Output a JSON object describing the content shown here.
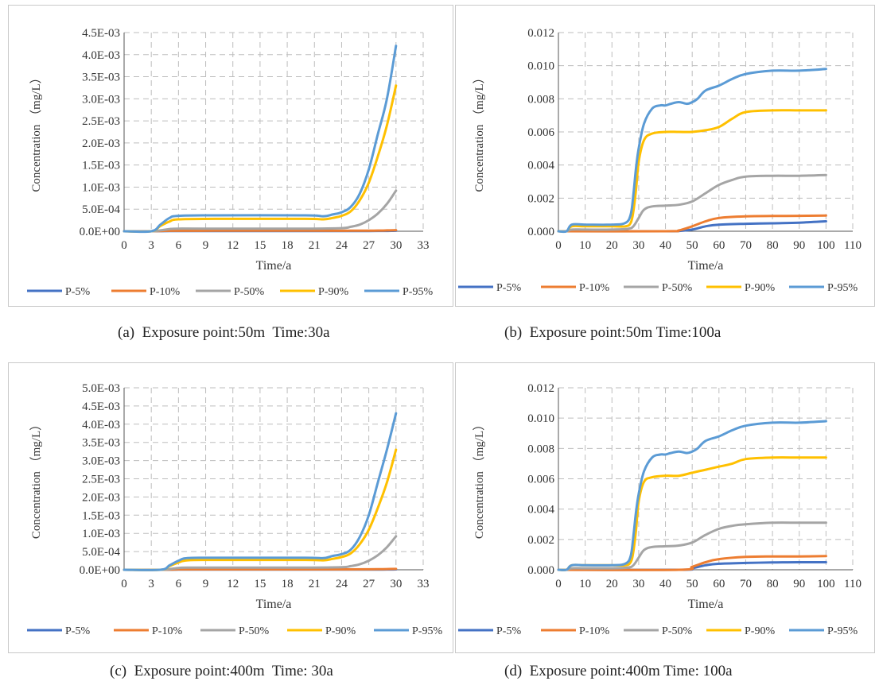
{
  "legend_names": [
    "P-5%",
    "P-10%",
    "P-50%",
    "P-90%",
    "P-95%"
  ],
  "series_colors": [
    "#4472c4",
    "#ed7d31",
    "#a5a5a5",
    "#ffc000",
    "#5b9bd5"
  ],
  "captions": [
    "(a)  Exposure point:50m  Time:30a",
    "(b)  Exposure point:50m Time:100a",
    "(c)  Exposure point:400m  Time: 30a",
    "(d)  Exposure point:400m Time: 100a"
  ],
  "chart_data": [
    {
      "type": "line",
      "xlabel": "Time/a",
      "ylabel": "Concentration （mg/L）",
      "xlim": [
        0,
        33
      ],
      "ylim": [
        0,
        0.0045
      ],
      "x_ticks": [
        "0",
        "3",
        "6",
        "9",
        "12",
        "15",
        "18",
        "21",
        "24",
        "27",
        "30",
        "33"
      ],
      "y_ticks": [
        "0.0E+00",
        "5.0E-04",
        "1.0E-03",
        "1.5E-03",
        "2.0E-03",
        "2.5E-03",
        "3.0E-03",
        "3.5E-03",
        "4.0E-03",
        "4.5E-03"
      ],
      "grid": true,
      "legend": "bottom",
      "series": [
        {
          "name": "P-5%",
          "x": [
            0,
            3,
            4,
            5,
            10,
            20,
            25,
            27,
            28,
            29,
            30
          ],
          "y": [
            0,
            0,
            2e-06,
            4e-06,
            5e-06,
            5e-06,
            5e-06,
            6e-06,
            7e-06,
            8e-06,
            1e-05
          ]
        },
        {
          "name": "P-10%",
          "x": [
            0,
            3,
            4,
            5,
            10,
            20,
            25,
            27,
            28,
            29,
            30
          ],
          "y": [
            0,
            0,
            5e-06,
            1e-05,
            1.2e-05,
            1.2e-05,
            1.2e-05,
            1.4e-05,
            1.6e-05,
            2e-05,
            2.5e-05
          ]
        },
        {
          "name": "P-50%",
          "x": [
            0,
            3,
            4,
            5,
            6,
            10,
            20,
            24,
            25,
            26,
            27,
            28,
            29,
            30
          ],
          "y": [
            0,
            0,
            2e-05,
            5e-05,
            6e-05,
            6e-05,
            6e-05,
            7e-05,
            0.0001,
            0.00015,
            0.00025,
            0.0004,
            0.00062,
            0.00092
          ]
        },
        {
          "name": "P-90%",
          "x": [
            0,
            3,
            4,
            5,
            6,
            10,
            20,
            22,
            23,
            24,
            25,
            26,
            27,
            28,
            29,
            30
          ],
          "y": [
            0,
            0,
            0.00012,
            0.00022,
            0.00027,
            0.00028,
            0.00028,
            0.00027,
            0.0003,
            0.00035,
            0.00045,
            0.0007,
            0.0011,
            0.0017,
            0.0024,
            0.0033
          ]
        },
        {
          "name": "P-95%",
          "x": [
            0,
            3,
            4,
            5,
            6,
            10,
            20,
            22,
            23,
            24,
            25,
            26,
            27,
            28,
            29,
            30
          ],
          "y": [
            0,
            0,
            0.00015,
            0.0003,
            0.00035,
            0.00036,
            0.00036,
            0.00034,
            0.00038,
            0.00043,
            0.00055,
            0.00085,
            0.0014,
            0.0022,
            0.003,
            0.0042
          ]
        }
      ]
    },
    {
      "type": "line",
      "xlabel": "Time/a",
      "ylabel": "Concentration （mg/L）",
      "xlim": [
        0,
        110
      ],
      "ylim": [
        0,
        0.012
      ],
      "x_ticks": [
        "0",
        "10",
        "20",
        "30",
        "40",
        "50",
        "60",
        "70",
        "80",
        "90",
        "100",
        "110"
      ],
      "y_ticks": [
        "0.000",
        "0.002",
        "0.004",
        "0.006",
        "0.008",
        "0.010",
        "0.012"
      ],
      "grid": true,
      "legend": "bottom",
      "series": [
        {
          "name": "P-5%",
          "x": [
            0,
            40,
            45,
            50,
            55,
            60,
            70,
            80,
            90,
            100
          ],
          "y": [
            0,
            0,
            2e-05,
            0.0001,
            0.0003,
            0.0004,
            0.00045,
            0.00048,
            0.00052,
            0.0006
          ]
        },
        {
          "name": "P-10%",
          "x": [
            0,
            40,
            45,
            50,
            55,
            60,
            70,
            80,
            90,
            100
          ],
          "y": [
            0,
            0,
            5e-05,
            0.0003,
            0.0006,
            0.0008,
            0.0009,
            0.00092,
            0.00093,
            0.00095
          ]
        },
        {
          "name": "P-50%",
          "x": [
            0,
            3,
            5,
            10,
            20,
            26,
            28,
            30,
            32,
            35,
            40,
            45,
            50,
            55,
            60,
            65,
            70,
            80,
            90,
            100
          ],
          "y": [
            0,
            0,
            0.0001,
            0.0001,
            0.0001,
            0.00015,
            0.0003,
            0.0008,
            0.0013,
            0.0015,
            0.00155,
            0.0016,
            0.0018,
            0.0023,
            0.0028,
            0.0031,
            0.0033,
            0.00335,
            0.00335,
            0.0034
          ]
        },
        {
          "name": "P-90%",
          "x": [
            0,
            3,
            5,
            10,
            20,
            25,
            27,
            28,
            29,
            30,
            32,
            35,
            40,
            45,
            50,
            55,
            60,
            65,
            70,
            80,
            90,
            100
          ],
          "y": [
            0,
            0,
            0.0003,
            0.0003,
            0.0003,
            0.0003,
            0.0005,
            0.0012,
            0.0025,
            0.0042,
            0.0055,
            0.0059,
            0.006,
            0.006,
            0.006,
            0.0061,
            0.0063,
            0.0068,
            0.0072,
            0.0073,
            0.0073,
            0.0073
          ]
        },
        {
          "name": "P-95%",
          "x": [
            0,
            3,
            5,
            10,
            20,
            25,
            27,
            28,
            29,
            30,
            32,
            35,
            38,
            40,
            42,
            45,
            48,
            50,
            52,
            55,
            60,
            65,
            70,
            80,
            90,
            100
          ],
          "y": [
            0,
            0,
            0.0004,
            0.0004,
            0.0004,
            0.0005,
            0.001,
            0.0022,
            0.0038,
            0.005,
            0.0065,
            0.0074,
            0.0076,
            0.0076,
            0.0077,
            0.0078,
            0.0077,
            0.0078,
            0.008,
            0.0085,
            0.0088,
            0.0092,
            0.0095,
            0.0097,
            0.0097,
            0.0098
          ]
        }
      ]
    },
    {
      "type": "line",
      "xlabel": "Time/a",
      "ylabel": "Concentration （mg/L）",
      "xlim": [
        0,
        33
      ],
      "ylim": [
        0,
        0.005
      ],
      "x_ticks": [
        "0",
        "3",
        "6",
        "9",
        "12",
        "15",
        "18",
        "21",
        "24",
        "27",
        "30",
        "33"
      ],
      "y_ticks": [
        "0.0E+00",
        "5.0E-04",
        "1.0E-03",
        "1.5E-03",
        "2.0E-03",
        "2.5E-03",
        "3.0E-03",
        "3.5E-03",
        "4.0E-03",
        "4.5E-03",
        "5.0E-03"
      ],
      "grid": true,
      "legend": "bottom",
      "series": [
        {
          "name": "P-5%",
          "x": [
            0,
            4,
            5,
            6,
            10,
            20,
            25,
            27,
            28,
            29,
            30
          ],
          "y": [
            0,
            0,
            2e-06,
            4e-06,
            5e-06,
            5e-06,
            5e-06,
            6e-06,
            7e-06,
            8e-06,
            1e-05
          ]
        },
        {
          "name": "P-10%",
          "x": [
            0,
            4,
            5,
            6,
            10,
            20,
            25,
            27,
            28,
            29,
            30
          ],
          "y": [
            0,
            0,
            5e-06,
            1e-05,
            1.2e-05,
            1.2e-05,
            1.2e-05,
            1.4e-05,
            1.6e-05,
            2e-05,
            2.5e-05
          ]
        },
        {
          "name": "P-50%",
          "x": [
            0,
            4,
            5,
            6,
            7,
            10,
            20,
            24,
            25,
            26,
            27,
            28,
            29,
            30
          ],
          "y": [
            0,
            0,
            2e-05,
            5e-05,
            6e-05,
            6e-05,
            6e-05,
            7e-05,
            0.0001,
            0.00015,
            0.00025,
            0.0004,
            0.00062,
            0.00092
          ]
        },
        {
          "name": "P-90%",
          "x": [
            0,
            4,
            5,
            6,
            7,
            10,
            20,
            22,
            23,
            24,
            25,
            26,
            27,
            28,
            29,
            30
          ],
          "y": [
            0,
            0,
            0.0001,
            0.0002,
            0.00026,
            0.00027,
            0.00027,
            0.00026,
            0.0003,
            0.00035,
            0.00045,
            0.0007,
            0.0011,
            0.0017,
            0.0024,
            0.0033
          ]
        },
        {
          "name": "P-95%",
          "x": [
            0,
            4,
            5,
            6,
            7,
            10,
            20,
            22,
            23,
            24,
            25,
            26,
            27,
            28,
            29,
            30
          ],
          "y": [
            0,
            0,
            0.00012,
            0.00025,
            0.00032,
            0.00033,
            0.00033,
            0.00032,
            0.00038,
            0.00043,
            0.00055,
            0.0009,
            0.0015,
            0.0024,
            0.0033,
            0.0043
          ]
        }
      ]
    },
    {
      "type": "line",
      "xlabel": "Time/a",
      "ylabel": "Concentration （mg/L）",
      "xlim": [
        0,
        110
      ],
      "ylim": [
        0,
        0.012
      ],
      "x_ticks": [
        "0",
        "10",
        "20",
        "30",
        "40",
        "50",
        "60",
        "70",
        "80",
        "90",
        "100",
        "110"
      ],
      "y_ticks": [
        "0.000",
        "0.002",
        "0.004",
        "0.006",
        "0.008",
        "0.010",
        "0.012"
      ],
      "grid": true,
      "legend": "bottom",
      "series": [
        {
          "name": "P-5%",
          "x": [
            0,
            45,
            50,
            55,
            60,
            70,
            80,
            90,
            100
          ],
          "y": [
            0,
            0,
            0.0001,
            0.0003,
            0.0004,
            0.00045,
            0.00048,
            0.0005,
            0.0005
          ]
        },
        {
          "name": "P-10%",
          "x": [
            0,
            45,
            50,
            55,
            60,
            70,
            80,
            90,
            100
          ],
          "y": [
            0,
            0,
            0.0002,
            0.0005,
            0.0007,
            0.00085,
            0.00088,
            0.00088,
            0.0009
          ]
        },
        {
          "name": "P-50%",
          "x": [
            0,
            3,
            5,
            10,
            20,
            26,
            28,
            30,
            32,
            35,
            40,
            45,
            50,
            55,
            60,
            65,
            70,
            80,
            90,
            100
          ],
          "y": [
            0,
            0,
            0.0001,
            0.0001,
            0.0001,
            0.00015,
            0.0003,
            0.0008,
            0.0013,
            0.0015,
            0.00155,
            0.0016,
            0.0018,
            0.0023,
            0.0027,
            0.0029,
            0.003,
            0.0031,
            0.0031,
            0.0031
          ]
        },
        {
          "name": "P-90%",
          "x": [
            0,
            3,
            5,
            10,
            20,
            25,
            27,
            28,
            29,
            30,
            32,
            35,
            40,
            45,
            50,
            55,
            60,
            65,
            70,
            80,
            90,
            100
          ],
          "y": [
            0,
            0,
            0.0003,
            0.0003,
            0.0003,
            0.0003,
            0.0005,
            0.0012,
            0.0026,
            0.0045,
            0.0058,
            0.0061,
            0.0062,
            0.0062,
            0.0064,
            0.0066,
            0.0068,
            0.007,
            0.0073,
            0.0074,
            0.0074,
            0.0074
          ]
        },
        {
          "name": "P-95%",
          "x": [
            0,
            3,
            5,
            10,
            20,
            25,
            27,
            28,
            29,
            30,
            32,
            35,
            38,
            40,
            42,
            45,
            48,
            50,
            52,
            55,
            60,
            65,
            70,
            80,
            90,
            100
          ],
          "y": [
            0,
            0,
            0.0003,
            0.0003,
            0.0003,
            0.0004,
            0.0009,
            0.0022,
            0.0038,
            0.005,
            0.0065,
            0.0074,
            0.0076,
            0.0076,
            0.0077,
            0.0078,
            0.0077,
            0.0078,
            0.008,
            0.0085,
            0.0088,
            0.0092,
            0.0095,
            0.0097,
            0.0097,
            0.0098
          ]
        }
      ]
    }
  ]
}
